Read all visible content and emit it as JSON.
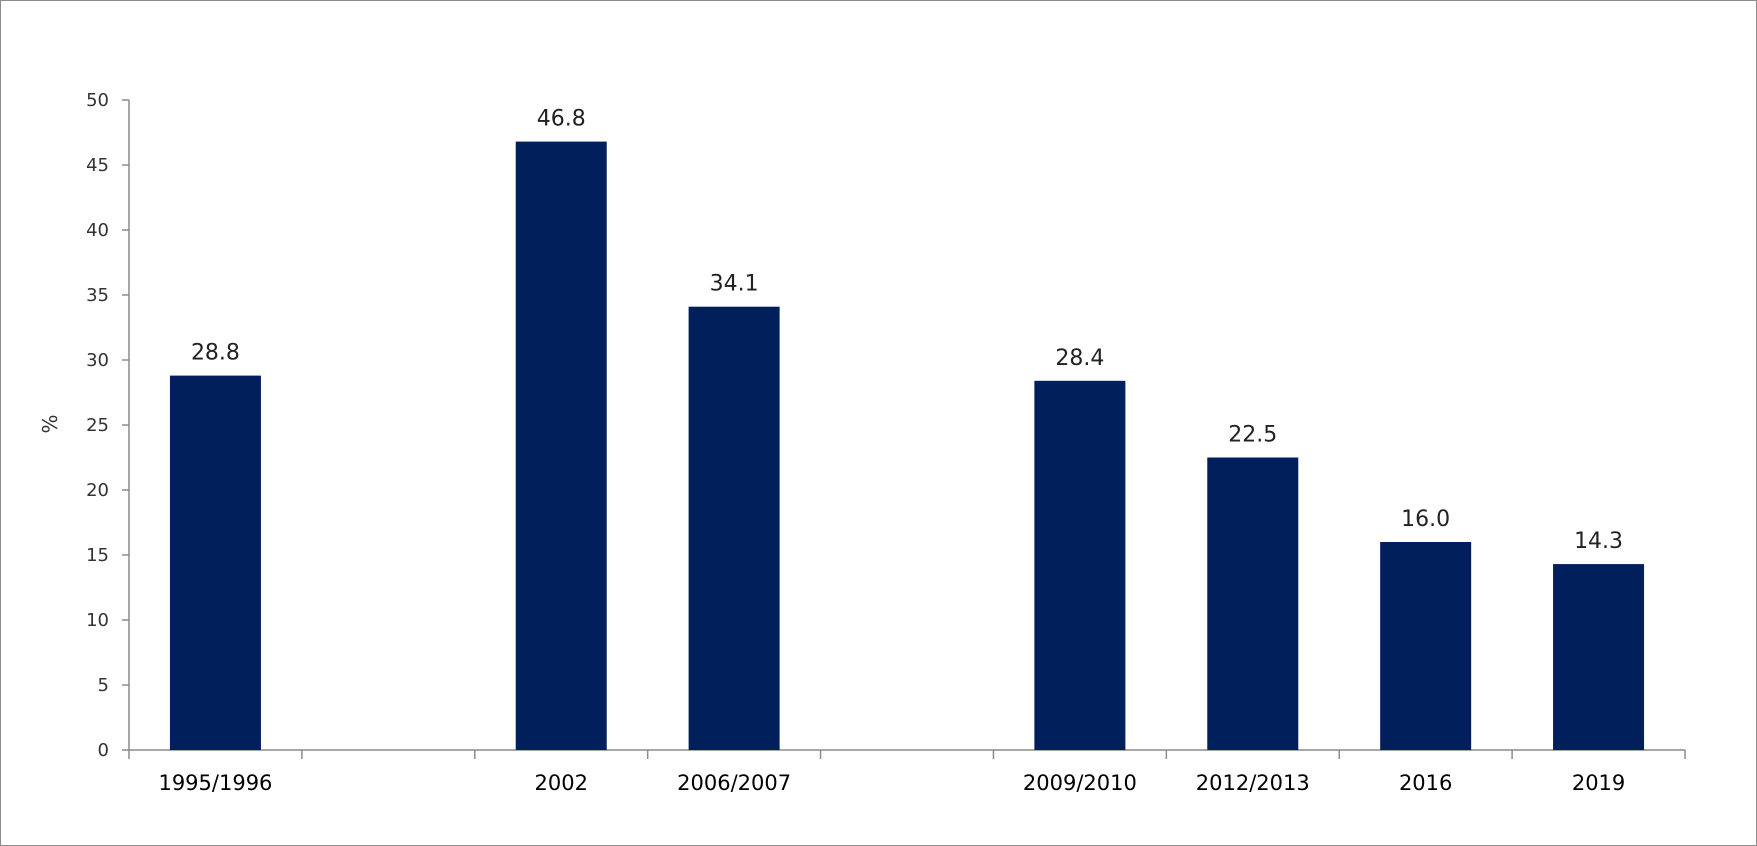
{
  "chart_data": {
    "type": "bar",
    "title": "",
    "xlabel": "",
    "ylabel": "%",
    "ylim": [
      0,
      50
    ],
    "y_ticks": [
      0,
      5,
      10,
      15,
      20,
      25,
      30,
      35,
      40,
      45,
      50
    ],
    "grid": false,
    "legend": "none",
    "categories": [
      "1995/1996",
      "2002",
      "2006/2007",
      "2009/2010",
      "2012/2013",
      "2016",
      "2019"
    ],
    "slots": [
      0,
      2,
      3,
      5,
      6,
      7,
      8
    ],
    "slot_count": 9,
    "values": [
      28.8,
      46.8,
      34.1,
      28.4,
      22.5,
      16.0,
      14.3
    ],
    "value_labels": [
      "28.8",
      "46.8",
      "34.1",
      "28.4",
      "22.5",
      "16.0",
      "14.3"
    ],
    "bar_color": "#001f5b",
    "axis_color": "#8c8c8c"
  }
}
